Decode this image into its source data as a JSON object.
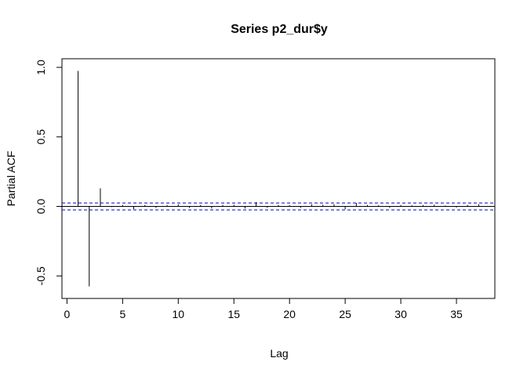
{
  "chart_data": {
    "type": "bar",
    "title": "Series  p2_dur$y",
    "xlabel": "Lag",
    "ylabel": "Partial ACF",
    "xlim": [
      0,
      38
    ],
    "ylim": [
      -0.6,
      1.0
    ],
    "x_ticks": [
      0,
      5,
      10,
      15,
      20,
      25,
      30,
      35
    ],
    "y_ticks": [
      -0.5,
      0.0,
      0.5,
      1.0
    ],
    "x_tick_labels": [
      "0",
      "5",
      "10",
      "15",
      "20",
      "25",
      "30",
      "35"
    ],
    "y_tick_labels": [
      "-0.5",
      "0.0",
      "0.5",
      "1.0"
    ],
    "confidence_limit": 0.025,
    "confidence_color": "#0000cc",
    "lags": [
      1,
      2,
      3,
      4,
      5,
      6,
      7,
      8,
      9,
      10,
      11,
      12,
      13,
      14,
      15,
      16,
      17,
      18,
      19,
      20,
      21,
      22,
      23,
      24,
      25,
      26,
      27,
      28,
      29,
      30,
      31,
      32,
      33,
      34,
      35,
      36,
      37
    ],
    "values": [
      0.975,
      -0.575,
      0.13,
      -0.005,
      0.01,
      -0.02,
      0.01,
      -0.01,
      0.008,
      0.015,
      -0.01,
      0.01,
      -0.015,
      0.01,
      0.012,
      -0.015,
      0.03,
      -0.01,
      0.01,
      0.008,
      -0.01,
      0.015,
      0.012,
      0.015,
      -0.02,
      0.025,
      0.01,
      0.008,
      -0.01,
      0.01,
      0.008,
      0.01,
      0.012,
      0.006,
      -0.008,
      0.01,
      0.015
    ]
  }
}
